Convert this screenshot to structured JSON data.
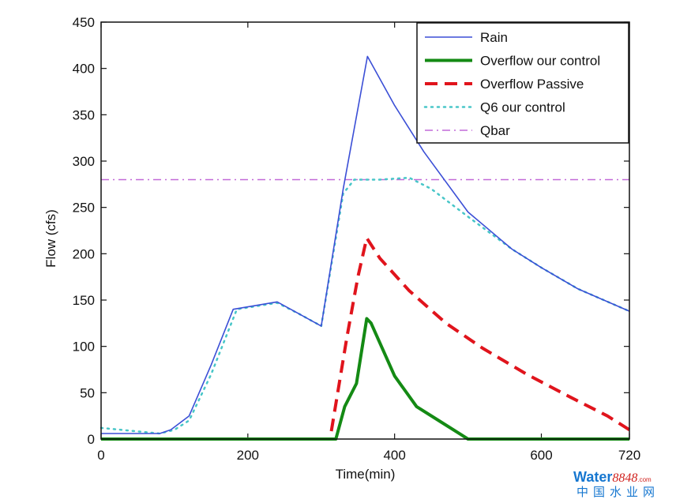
{
  "chart_data": {
    "type": "line",
    "title": "",
    "xlabel": "Time(min)",
    "ylabel": "Flow (cfs)",
    "xlim": [
      0,
      720
    ],
    "ylim": [
      0,
      450
    ],
    "xticks": [
      0,
      200,
      400,
      600,
      720
    ],
    "yticks": [
      0,
      50,
      100,
      150,
      200,
      250,
      300,
      350,
      400,
      450
    ],
    "xtick_labels": [
      "0",
      "200",
      "400",
      "600",
      "720"
    ],
    "ytick_labels": [
      "0",
      "50",
      "100",
      "150",
      "200",
      "250",
      "300",
      "350",
      "400",
      "450"
    ],
    "legend_position": "top-right",
    "series": [
      {
        "name": "Rain",
        "color": "#3b4fd6",
        "style": "solid",
        "points": [
          [
            0,
            6
          ],
          [
            80,
            6
          ],
          [
            95,
            10
          ],
          [
            120,
            25
          ],
          [
            150,
            80
          ],
          [
            180,
            140
          ],
          [
            240,
            148
          ],
          [
            270,
            135
          ],
          [
            300,
            122
          ],
          [
            330,
            270
          ],
          [
            363,
            413
          ],
          [
            400,
            360
          ],
          [
            440,
            310
          ],
          [
            500,
            245
          ],
          [
            560,
            205
          ],
          [
            600,
            185
          ],
          [
            650,
            162
          ],
          [
            720,
            138
          ]
        ]
      },
      {
        "name": "Overflow our control",
        "color": "#148a14",
        "style": "solid",
        "points": [
          [
            0,
            0
          ],
          [
            320,
            0
          ],
          [
            332,
            35
          ],
          [
            348,
            60
          ],
          [
            362,
            130
          ],
          [
            368,
            125
          ],
          [
            400,
            68
          ],
          [
            430,
            35
          ],
          [
            460,
            20
          ],
          [
            490,
            5
          ],
          [
            500,
            0
          ],
          [
            720,
            0
          ]
        ]
      },
      {
        "name": "Overflow Passive",
        "color": "#e0141c",
        "style": "dashed",
        "points": [
          [
            0,
            0
          ],
          [
            312,
            0
          ],
          [
            335,
            110
          ],
          [
            350,
            175
          ],
          [
            362,
            217
          ],
          [
            380,
            195
          ],
          [
            420,
            160
          ],
          [
            470,
            125
          ],
          [
            520,
            98
          ],
          [
            580,
            70
          ],
          [
            640,
            45
          ],
          [
            690,
            25
          ],
          [
            720,
            10
          ]
        ]
      },
      {
        "name": "Q6 our control",
        "color": "#48c6c8",
        "style": "dotted",
        "points": [
          [
            0,
            12
          ],
          [
            80,
            6
          ],
          [
            100,
            10
          ],
          [
            120,
            20
          ],
          [
            150,
            70
          ],
          [
            185,
            140
          ],
          [
            240,
            147
          ],
          [
            270,
            135
          ],
          [
            300,
            122
          ],
          [
            330,
            265
          ],
          [
            345,
            280
          ],
          [
            380,
            280
          ],
          [
            420,
            282
          ],
          [
            450,
            270
          ],
          [
            500,
            240
          ],
          [
            560,
            205
          ],
          [
            600,
            185
          ],
          [
            650,
            162
          ],
          [
            720,
            138
          ]
        ]
      },
      {
        "name": "Qbar",
        "color": "#c26ad8",
        "style": "dashdot",
        "points": [
          [
            0,
            280
          ],
          [
            720,
            280
          ]
        ]
      }
    ]
  },
  "watermark": {
    "brand": "Water",
    "number": "8848",
    "suffix": ".com",
    "chinese": "中国水业网",
    "color_brand": "#1677d0",
    "color_number": "#d0201c"
  }
}
